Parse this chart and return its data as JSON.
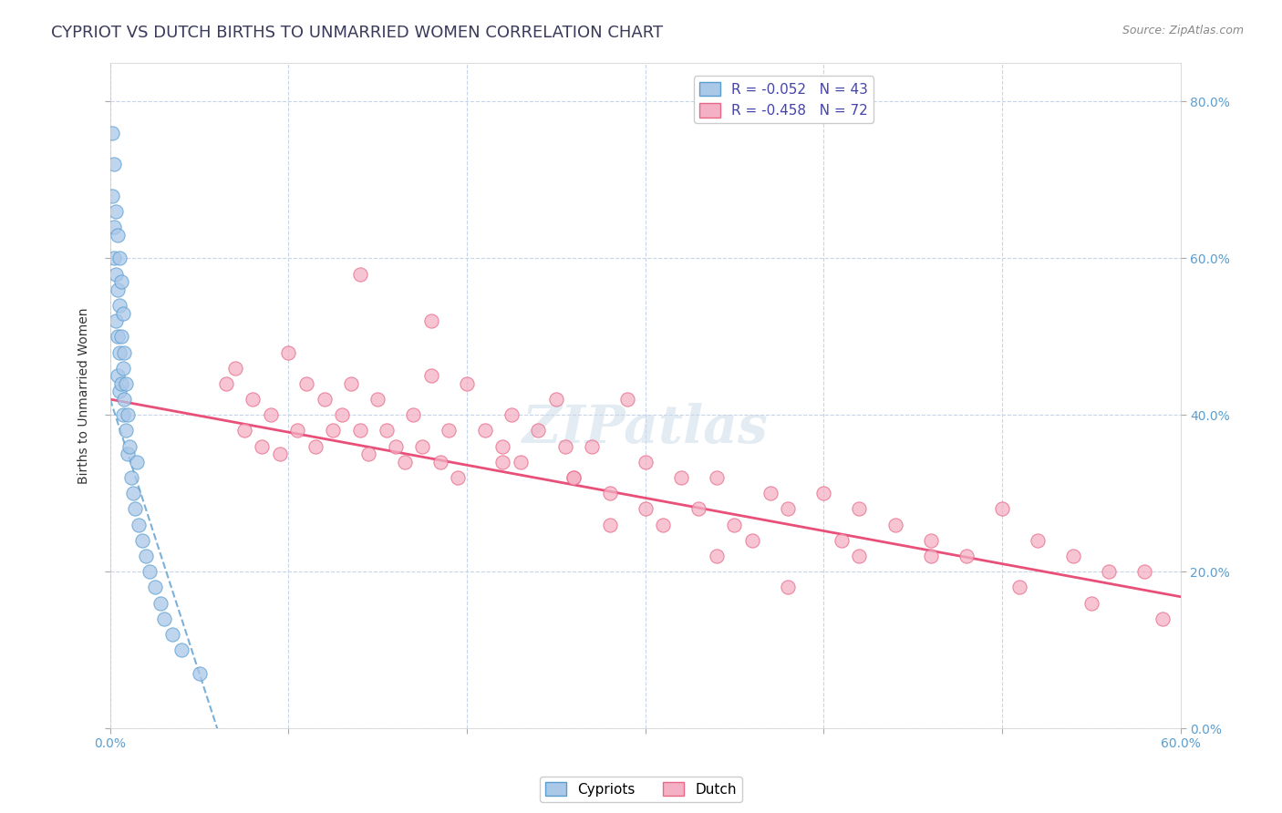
{
  "title": "CYPRIOT VS DUTCH BIRTHS TO UNMARRIED WOMEN CORRELATION CHART",
  "source": "Source: ZipAtlas.com",
  "ylabel": "Births to Unmarried Women",
  "xlim": [
    0.0,
    0.6
  ],
  "ylim": [
    0.0,
    0.85
  ],
  "x_ticks": [
    0.0,
    0.1,
    0.2,
    0.3,
    0.4,
    0.5,
    0.6
  ],
  "y_ticks": [
    0.0,
    0.2,
    0.4,
    0.6,
    0.8
  ],
  "cypriot_x": [
    0.001,
    0.001,
    0.002,
    0.002,
    0.002,
    0.003,
    0.003,
    0.003,
    0.004,
    0.004,
    0.004,
    0.004,
    0.005,
    0.005,
    0.005,
    0.005,
    0.006,
    0.006,
    0.006,
    0.007,
    0.007,
    0.007,
    0.008,
    0.008,
    0.009,
    0.009,
    0.01,
    0.01,
    0.011,
    0.012,
    0.013,
    0.014,
    0.015,
    0.016,
    0.018,
    0.02,
    0.022,
    0.025,
    0.028,
    0.03,
    0.035,
    0.04,
    0.05
  ],
  "cypriot_y": [
    0.76,
    0.68,
    0.72,
    0.64,
    0.6,
    0.66,
    0.58,
    0.52,
    0.63,
    0.56,
    0.5,
    0.45,
    0.6,
    0.54,
    0.48,
    0.43,
    0.57,
    0.5,
    0.44,
    0.53,
    0.46,
    0.4,
    0.48,
    0.42,
    0.44,
    0.38,
    0.4,
    0.35,
    0.36,
    0.32,
    0.3,
    0.28,
    0.34,
    0.26,
    0.24,
    0.22,
    0.2,
    0.18,
    0.16,
    0.14,
    0.12,
    0.1,
    0.07
  ],
  "dutch_x": [
    0.065,
    0.07,
    0.075,
    0.08,
    0.085,
    0.09,
    0.095,
    0.1,
    0.105,
    0.11,
    0.115,
    0.12,
    0.125,
    0.13,
    0.135,
    0.14,
    0.145,
    0.15,
    0.155,
    0.16,
    0.165,
    0.17,
    0.175,
    0.18,
    0.185,
    0.19,
    0.195,
    0.2,
    0.21,
    0.22,
    0.225,
    0.23,
    0.24,
    0.25,
    0.255,
    0.26,
    0.27,
    0.28,
    0.29,
    0.3,
    0.31,
    0.32,
    0.33,
    0.34,
    0.36,
    0.37,
    0.38,
    0.4,
    0.42,
    0.44,
    0.46,
    0.48,
    0.5,
    0.52,
    0.54,
    0.56,
    0.58,
    0.28,
    0.34,
    0.38,
    0.42,
    0.14,
    0.18,
    0.22,
    0.26,
    0.3,
    0.35,
    0.41,
    0.46,
    0.51,
    0.55,
    0.59
  ],
  "dutch_y": [
    0.44,
    0.46,
    0.38,
    0.42,
    0.36,
    0.4,
    0.35,
    0.48,
    0.38,
    0.44,
    0.36,
    0.42,
    0.38,
    0.4,
    0.44,
    0.38,
    0.35,
    0.42,
    0.38,
    0.36,
    0.34,
    0.4,
    0.36,
    0.45,
    0.34,
    0.38,
    0.32,
    0.44,
    0.38,
    0.36,
    0.4,
    0.34,
    0.38,
    0.42,
    0.36,
    0.32,
    0.36,
    0.3,
    0.42,
    0.34,
    0.26,
    0.32,
    0.28,
    0.32,
    0.24,
    0.3,
    0.28,
    0.3,
    0.28,
    0.26,
    0.24,
    0.22,
    0.28,
    0.24,
    0.22,
    0.2,
    0.2,
    0.26,
    0.22,
    0.18,
    0.22,
    0.58,
    0.52,
    0.34,
    0.32,
    0.28,
    0.26,
    0.24,
    0.22,
    0.18,
    0.16,
    0.14
  ],
  "watermark": "ZIPatlas",
  "background_color": "#ffffff",
  "grid_color": "#c8d4e8",
  "cypriot_scatter_face": "#aac8e8",
  "cypriot_scatter_edge": "#5a9ed0",
  "dutch_scatter_face": "#f4b0c4",
  "dutch_scatter_edge": "#e86888",
  "cypriot_line_color": "#5a9ed0",
  "dutch_line_color": "#e8507a",
  "cypriot_line_intercept": 0.42,
  "cypriot_line_slope": -7.0,
  "dutch_line_intercept": 0.42,
  "dutch_line_slope": -0.42,
  "title_fontsize": 13,
  "axis_label_fontsize": 10,
  "tick_fontsize": 10,
  "legend_fontsize": 11,
  "right_tick_color": "#5a9ed0",
  "legend_text_color": "#4444aa"
}
